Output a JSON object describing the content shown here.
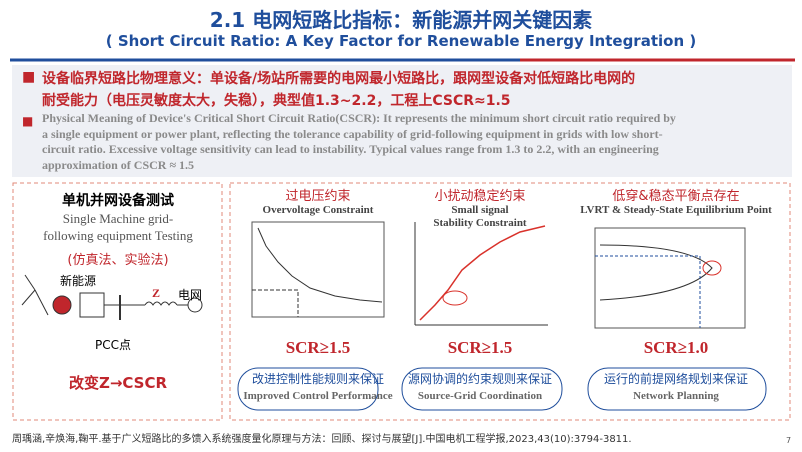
{
  "header": {
    "title": "2.1 电网短路比指标：新能源并网关键因素",
    "subtitle": "( Short Circuit Ratio: A Key Factor for Renewable Energy Integration )"
  },
  "definition": {
    "cn_lines": [
      "设备临界短路比物理意义：单设备/场站所需要的电网最小短路比，跟网型设备对低短路比电网的",
      "耐受能力（电压灵敏度太大，失稳），典型值1.3~2.2，工程上CSCR≈1.5"
    ],
    "en_lines": [
      "Physical Meaning of Device's Critical Short Circuit Ratio(CSCR): It represents the minimum short circuit ratio required by",
      "a single equipment or power plant, reflecting the tolerance capability of grid-following equipment in grids with low short-",
      "circuit ratio. Excessive voltage sensitivity can lead to instability. Typical values range from 1.3 to 2.2, with an engineering",
      "approximation of CSCR ≈ 1.5"
    ]
  },
  "left_panel": {
    "title_cn": "单机并网设备测试",
    "title_en": [
      "Single Machine grid-",
      "following equipment Testing"
    ],
    "method": "(仿真法、实验法)",
    "source": "新能源",
    "impedance": "Z",
    "grid": "电网",
    "pcc": "PCC点",
    "result": "改变Z→CSCR"
  },
  "constraints": [
    {
      "title_cn": "过电压约束",
      "title_en": [
        "Overvoltage Constraint"
      ],
      "scr": "SCR≥1.5",
      "method_cn": "改进控制性能规则来保证",
      "method_en": "Improved Control Performance"
    },
    {
      "title_cn": "小扰动稳定约束",
      "title_en": [
        "Small signal",
        "Stability Constraint"
      ],
      "scr": "SCR≥1.5",
      "method_cn": "源网协调的约束规则来保证",
      "method_en": "Source-Grid Coordination"
    },
    {
      "title_cn": "低穿&稳态平衡点存在",
      "title_en": [
        "LVRT & Steady-State Equilibrium Point"
      ],
      "scr": "SCR≥1.0",
      "method_cn": "运行的前提网络规划来保证",
      "method_en": "Network Planning"
    }
  ],
  "footer": {
    "citation": "周瑀涵,辛焕海,鞠平.基于广义短路比的多馈入系统强度量化原理与方法：回顾、探讨与展望[J].中国电机工程学报,2023,43(10):3794-3811.",
    "page": "7"
  }
}
